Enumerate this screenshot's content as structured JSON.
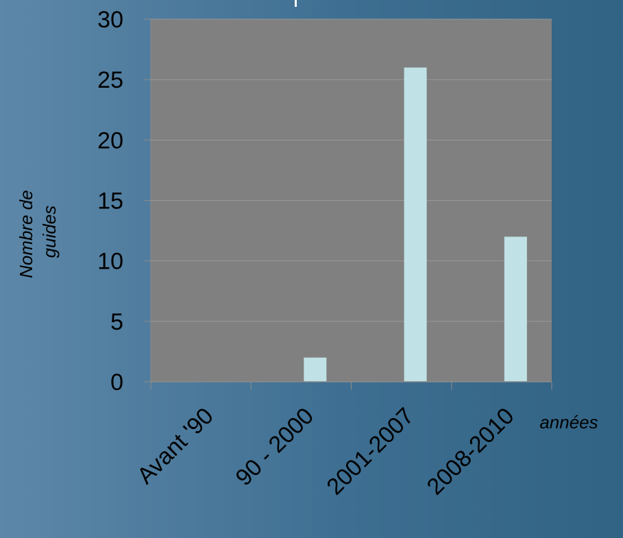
{
  "chart_data": {
    "type": "bar",
    "categories": [
      "Avant '90",
      "90 - 2000",
      "2001-2007",
      "2008-2010"
    ],
    "values": [
      0,
      2,
      26,
      12
    ],
    "ylabel_lines": [
      "Nombre de",
      "guides"
    ],
    "xlabel": "années",
    "ylim": [
      0,
      30
    ],
    "yticks": [
      0,
      5,
      10,
      15,
      20,
      25,
      30
    ],
    "grid": true,
    "colors": {
      "plot_bg": "#808080",
      "bar": "#c0e2e6",
      "grid": "#999999",
      "axis": "#8c8c8c",
      "text": "#000000"
    }
  }
}
